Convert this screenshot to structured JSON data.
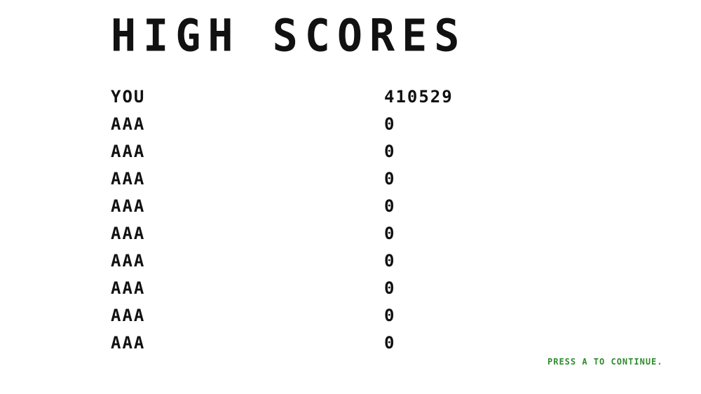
{
  "screen": {
    "title": "HIGH SCORES",
    "entries": [
      {
        "name": "YOU",
        "score": "410529"
      },
      {
        "name": "AAA",
        "score": "0"
      },
      {
        "name": "AAA",
        "score": "0"
      },
      {
        "name": "AAA",
        "score": "0"
      },
      {
        "name": "AAA",
        "score": "0"
      },
      {
        "name": "AAA",
        "score": "0"
      },
      {
        "name": "AAA",
        "score": "0"
      },
      {
        "name": "AAA",
        "score": "0"
      },
      {
        "name": "AAA",
        "score": "0"
      },
      {
        "name": "AAA",
        "score": "0"
      }
    ],
    "continue_hint": "PRESS A TO CONTINUE."
  },
  "colors": {
    "text": "#111111",
    "hint": "#2e8b2e",
    "background": "#ffffff"
  }
}
